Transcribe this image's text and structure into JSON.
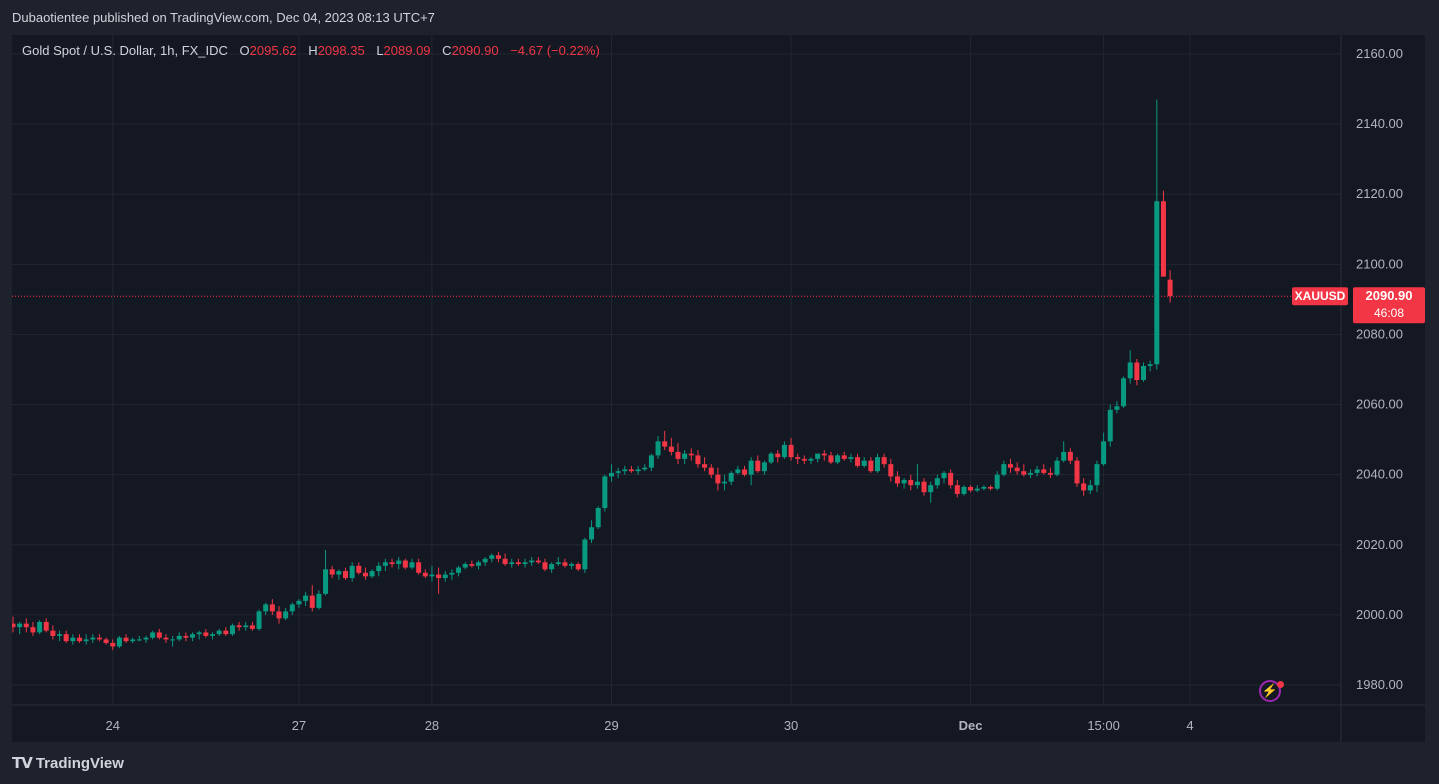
{
  "header": {
    "published_text": "Dubaotientee published on TradingView.com, Dec 04, 2023 08:13 UTC+7"
  },
  "legend": {
    "symbol": "Gold Spot / U.S. Dollar, 1h, FX_IDC",
    "o_label": "O",
    "o_value": "2095.62",
    "h_label": "H",
    "h_value": "2098.35",
    "l_label": "L",
    "l_value": "2089.09",
    "c_label": "C",
    "c_value": "2090.90",
    "change": "−4.67 (−0.22%)"
  },
  "price_tag": {
    "ticker": "XAUUSD",
    "price": "2090.90",
    "countdown": "46:08"
  },
  "footer": {
    "brand": "TradingView"
  },
  "colors": {
    "up": "#089981",
    "down": "#f23645",
    "background": "#141823",
    "grid": "#222631",
    "text": "#b2b5be"
  },
  "icons": {
    "alert": "lightning-bolt-icon",
    "logo": "tradingview-logo-icon"
  },
  "chart_data": {
    "type": "candlestick",
    "title": "Gold Spot / U.S. Dollar, 1h, FX_IDC",
    "ylim": [
      1972,
      2168
    ],
    "y_ticks": [
      1980,
      2000,
      2020,
      2040,
      2060,
      2080,
      2100,
      2120,
      2140,
      2160
    ],
    "x_ticks": [
      {
        "label": "24",
        "index": 15
      },
      {
        "label": "27",
        "index": 43
      },
      {
        "label": "28",
        "index": 63
      },
      {
        "label": "29",
        "index": 90
      },
      {
        "label": "30",
        "index": 117
      },
      {
        "label": "Dec",
        "index": 144,
        "bold": true
      },
      {
        "label": "15:00",
        "index": 164
      },
      {
        "label": "4",
        "index": 177
      }
    ],
    "last_price": 2090.9,
    "grid": true,
    "candles": [
      [
        1997.5,
        1999.5,
        1995,
        1996.5
      ],
      [
        1996.5,
        1998,
        1994.5,
        1997.5
      ],
      [
        1997.5,
        1999,
        1995,
        1996.5
      ],
      [
        1996.5,
        1998,
        1994,
        1995
      ],
      [
        1995,
        1998.5,
        1994.5,
        1998
      ],
      [
        1998,
        1999,
        1995,
        1995.5
      ],
      [
        1995.5,
        1997,
        1993,
        1994
      ],
      [
        1994,
        1995.5,
        1992.5,
        1994.5
      ],
      [
        1994.5,
        1995.5,
        1992,
        1992.5
      ],
      [
        1992.5,
        1994.5,
        1991.5,
        1993.5
      ],
      [
        1993.5,
        1994.5,
        1992,
        1992.5
      ],
      [
        1992.5,
        1994.5,
        1991.5,
        1993
      ],
      [
        1993,
        1994.5,
        1992,
        1993.5
      ],
      [
        1993.5,
        1994.5,
        1992.5,
        1993
      ],
      [
        1993,
        1993.5,
        1991.5,
        1992
      ],
      [
        1992,
        1993,
        1990,
        1991
      ],
      [
        1991,
        1994,
        1990.5,
        1993.5
      ],
      [
        1993.5,
        1994.5,
        1992,
        1992.5
      ],
      [
        1992.5,
        1993.5,
        1992,
        1993
      ],
      [
        1993,
        1994,
        1992.5,
        1993
      ],
      [
        1993,
        1994,
        1992,
        1993.5
      ],
      [
        1993.5,
        1995.5,
        1993,
        1995
      ],
      [
        1995,
        1996,
        1993,
        1993.5
      ],
      [
        1993.5,
        1994.5,
        1992,
        1993
      ],
      [
        1993,
        1994,
        1991,
        1993
      ],
      [
        1993,
        1995,
        1992.5,
        1994
      ],
      [
        1994,
        1995,
        1992.5,
        1993.5
      ],
      [
        1993.5,
        1995,
        1992.5,
        1994.5
      ],
      [
        1994.5,
        1995.5,
        1993,
        1995
      ],
      [
        1995,
        1996,
        1993.5,
        1994
      ],
      [
        1994,
        1995,
        1993,
        1994.5
      ],
      [
        1994.5,
        1996,
        1994,
        1995.5
      ],
      [
        1995.5,
        1996.5,
        1994,
        1994.5
      ],
      [
        1994.5,
        1997.5,
        1994,
        1997
      ],
      [
        1997,
        1998,
        1995.5,
        1996.5
      ],
      [
        1996.5,
        1998,
        1995.5,
        1997
      ],
      [
        1997,
        1998,
        1995.5,
        1996
      ],
      [
        1996,
        2001.5,
        1995.5,
        2001
      ],
      [
        2001,
        2003.5,
        2000,
        2003
      ],
      [
        2003,
        2004.5,
        2000,
        2001
      ],
      [
        2001,
        2002.5,
        1997.5,
        1999
      ],
      [
        1999,
        2002,
        1998.5,
        2001
      ],
      [
        2001,
        2003.5,
        2000,
        2003
      ],
      [
        2003,
        2004.5,
        2002,
        2004
      ],
      [
        2004,
        2006.5,
        2002.5,
        2005.5
      ],
      [
        2005.5,
        2008.5,
        2001,
        2002
      ],
      [
        2002,
        2007,
        2001.5,
        2006
      ],
      [
        2006,
        2018.5,
        2005.5,
        2013
      ],
      [
        2013,
        2014,
        2010.5,
        2011.5
      ],
      [
        2011.5,
        2013,
        2010,
        2012.5
      ],
      [
        2012.5,
        2013.5,
        2010,
        2010.5
      ],
      [
        2010.5,
        2015,
        2009.5,
        2014
      ],
      [
        2014,
        2015,
        2011.5,
        2012
      ],
      [
        2012,
        2013.5,
        2010,
        2011
      ],
      [
        2011,
        2013,
        2010.5,
        2012.5
      ],
      [
        2012.5,
        2015,
        2011,
        2014
      ],
      [
        2014,
        2016,
        2012.5,
        2015
      ],
      [
        2015,
        2016,
        2013.5,
        2014.5
      ],
      [
        2014.5,
        2016.5,
        2013,
        2015.5
      ],
      [
        2015.5,
        2016,
        2013,
        2013.5
      ],
      [
        2013.5,
        2016,
        2013,
        2015
      ],
      [
        2015,
        2016,
        2011.5,
        2012
      ],
      [
        2012,
        2013,
        2010.5,
        2011
      ],
      [
        2011,
        2014,
        2009.5,
        2011.5
      ],
      [
        2011.5,
        2013.5,
        2006,
        2010.5
      ],
      [
        2010.5,
        2012.5,
        2009.5,
        2011.5
      ],
      [
        2011.5,
        2013,
        2010,
        2012
      ],
      [
        2012,
        2014,
        2011,
        2013.5
      ],
      [
        2013.5,
        2015,
        2013,
        2014.5
      ],
      [
        2014.5,
        2015.5,
        2013.5,
        2014
      ],
      [
        2014,
        2015.5,
        2013,
        2015
      ],
      [
        2015,
        2016.5,
        2014,
        2016
      ],
      [
        2016,
        2017.5,
        2015,
        2017
      ],
      [
        2017,
        2018,
        2015,
        2016
      ],
      [
        2016,
        2017.5,
        2014,
        2014.5
      ],
      [
        2014.5,
        2016,
        2013.5,
        2015
      ],
      [
        2015,
        2016,
        2014,
        2014.5
      ],
      [
        2014.5,
        2016,
        2013.5,
        2015
      ],
      [
        2015,
        2016.5,
        2014,
        2015.5
      ],
      [
        2015.5,
        2016.5,
        2014.5,
        2015
      ],
      [
        2015,
        2016,
        2012.5,
        2013
      ],
      [
        2013,
        2015,
        2012,
        2014.5
      ],
      [
        2014.5,
        2016.5,
        2014,
        2015
      ],
      [
        2015,
        2016,
        2013.5,
        2014
      ],
      [
        2014,
        2015,
        2013,
        2014.5
      ],
      [
        2014.5,
        2015,
        2012.5,
        2013
      ],
      [
        2013,
        2022,
        2012,
        2021.5
      ],
      [
        2021.5,
        2027,
        2020.5,
        2025
      ],
      [
        2025,
        2031,
        2024.5,
        2030.5
      ],
      [
        2030.5,
        2040,
        2029.5,
        2039.5
      ],
      [
        2039.5,
        2043,
        2038,
        2040.5
      ],
      [
        2040.5,
        2042,
        2039,
        2041
      ],
      [
        2041,
        2042.5,
        2040,
        2041.5
      ],
      [
        2041.5,
        2042.5,
        2040.5,
        2041
      ],
      [
        2041,
        2042.5,
        2040,
        2041.5
      ],
      [
        2041.5,
        2043,
        2041,
        2042
      ],
      [
        2042,
        2046,
        2041,
        2045.5
      ],
      [
        2045.5,
        2051,
        2044.5,
        2049.5
      ],
      [
        2049.5,
        2052.5,
        2047,
        2048
      ],
      [
        2048,
        2050.5,
        2045.5,
        2046.5
      ],
      [
        2046.5,
        2049,
        2043,
        2044.5
      ],
      [
        2044.5,
        2047,
        2043,
        2046
      ],
      [
        2046,
        2047.5,
        2044,
        2045.5
      ],
      [
        2045.5,
        2047,
        2042,
        2043
      ],
      [
        2043,
        2045,
        2041,
        2042
      ],
      [
        2042,
        2043,
        2039,
        2040
      ],
      [
        2040,
        2042,
        2035.5,
        2037.5
      ],
      [
        2037.5,
        2040,
        2035.5,
        2038
      ],
      [
        2038,
        2041,
        2037,
        2040.5
      ],
      [
        2040.5,
        2042.5,
        2040,
        2041.5
      ],
      [
        2041.5,
        2042.5,
        2039.5,
        2040
      ],
      [
        2040,
        2045,
        2037,
        2044
      ],
      [
        2044,
        2045.5,
        2040.5,
        2041
      ],
      [
        2041,
        2044,
        2040,
        2043.5
      ],
      [
        2043.5,
        2046.5,
        2043,
        2046
      ],
      [
        2046,
        2047,
        2043.5,
        2045
      ],
      [
        2045,
        2049.5,
        2044.5,
        2048.5
      ],
      [
        2048.5,
        2050.5,
        2044,
        2045
      ],
      [
        2045,
        2046,
        2043,
        2044.5
      ],
      [
        2044.5,
        2045.5,
        2043,
        2044
      ],
      [
        2044,
        2045,
        2043,
        2044.5
      ],
      [
        2044.5,
        2046,
        2043.5,
        2046
      ],
      [
        2046,
        2047,
        2044,
        2045.5
      ],
      [
        2045.5,
        2046.5,
        2043,
        2043.5
      ],
      [
        2043.5,
        2046,
        2043,
        2045.5
      ],
      [
        2045.5,
        2046.5,
        2044,
        2044.5
      ],
      [
        2044.5,
        2046,
        2043.5,
        2045
      ],
      [
        2045,
        2046,
        2042,
        2042.5
      ],
      [
        2042.5,
        2045,
        2042,
        2044
      ],
      [
        2044,
        2045,
        2040.5,
        2041
      ],
      [
        2041,
        2046,
        2040.5,
        2045
      ],
      [
        2045,
        2046,
        2042,
        2043
      ],
      [
        2043,
        2044.5,
        2038,
        2039.5
      ],
      [
        2039.5,
        2041,
        2036.5,
        2037.5
      ],
      [
        2037.5,
        2039,
        2036,
        2038.5
      ],
      [
        2038.5,
        2040,
        2035.5,
        2037
      ],
      [
        2037,
        2043,
        2036,
        2038
      ],
      [
        2038,
        2039,
        2034,
        2035
      ],
      [
        2035,
        2038,
        2032,
        2037
      ],
      [
        2037,
        2040,
        2036,
        2039
      ],
      [
        2039,
        2041,
        2037.5,
        2040.5
      ],
      [
        2040.5,
        2041.5,
        2036,
        2037
      ],
      [
        2037,
        2038.5,
        2033.5,
        2034.5
      ],
      [
        2034.5,
        2037,
        2034,
        2036.5
      ],
      [
        2036.5,
        2037,
        2035,
        2035.5
      ],
      [
        2035.5,
        2037,
        2035,
        2036
      ],
      [
        2036,
        2037,
        2035.5,
        2036.5
      ],
      [
        2036.5,
        2037,
        2035.5,
        2036
      ],
      [
        2036,
        2041,
        2035.5,
        2040
      ],
      [
        2040,
        2044,
        2039.5,
        2043
      ],
      [
        2043,
        2044.5,
        2040.5,
        2042
      ],
      [
        2042,
        2043.5,
        2040,
        2041
      ],
      [
        2041,
        2043,
        2039.5,
        2040
      ],
      [
        2040,
        2041.5,
        2039,
        2040.5
      ],
      [
        2040.5,
        2042.5,
        2039.5,
        2041.5
      ],
      [
        2041.5,
        2043,
        2040,
        2040.5
      ],
      [
        2040.5,
        2042,
        2039,
        2040
      ],
      [
        2040,
        2045,
        2039.5,
        2044
      ],
      [
        2044,
        2049.5,
        2043.5,
        2046.5
      ],
      [
        2046.5,
        2047.5,
        2043,
        2044
      ],
      [
        2044,
        2045,
        2036.5,
        2037.5
      ],
      [
        2037.5,
        2039,
        2034,
        2035.5
      ],
      [
        2035.5,
        2038.5,
        2034.5,
        2037
      ],
      [
        2037,
        2044,
        2035,
        2043
      ],
      [
        2043,
        2052,
        2042.5,
        2049.5
      ],
      [
        2049.5,
        2060,
        2048,
        2058.5
      ],
      [
        2058.5,
        2061,
        2057.5,
        2059.5
      ],
      [
        2059.5,
        2068,
        2059,
        2067.5
      ],
      [
        2067.5,
        2075.5,
        2066,
        2072
      ],
      [
        2072,
        2073,
        2065.5,
        2067
      ],
      [
        2067,
        2072,
        2066.5,
        2071
      ],
      [
        2071,
        2072.5,
        2069.5,
        2071.5
      ],
      [
        2071.5,
        2147,
        2070,
        2118
      ],
      [
        2118,
        2121,
        2096.5,
        2096.5
      ],
      [
        2095.62,
        2098.35,
        2089.09,
        2090.9
      ]
    ]
  }
}
